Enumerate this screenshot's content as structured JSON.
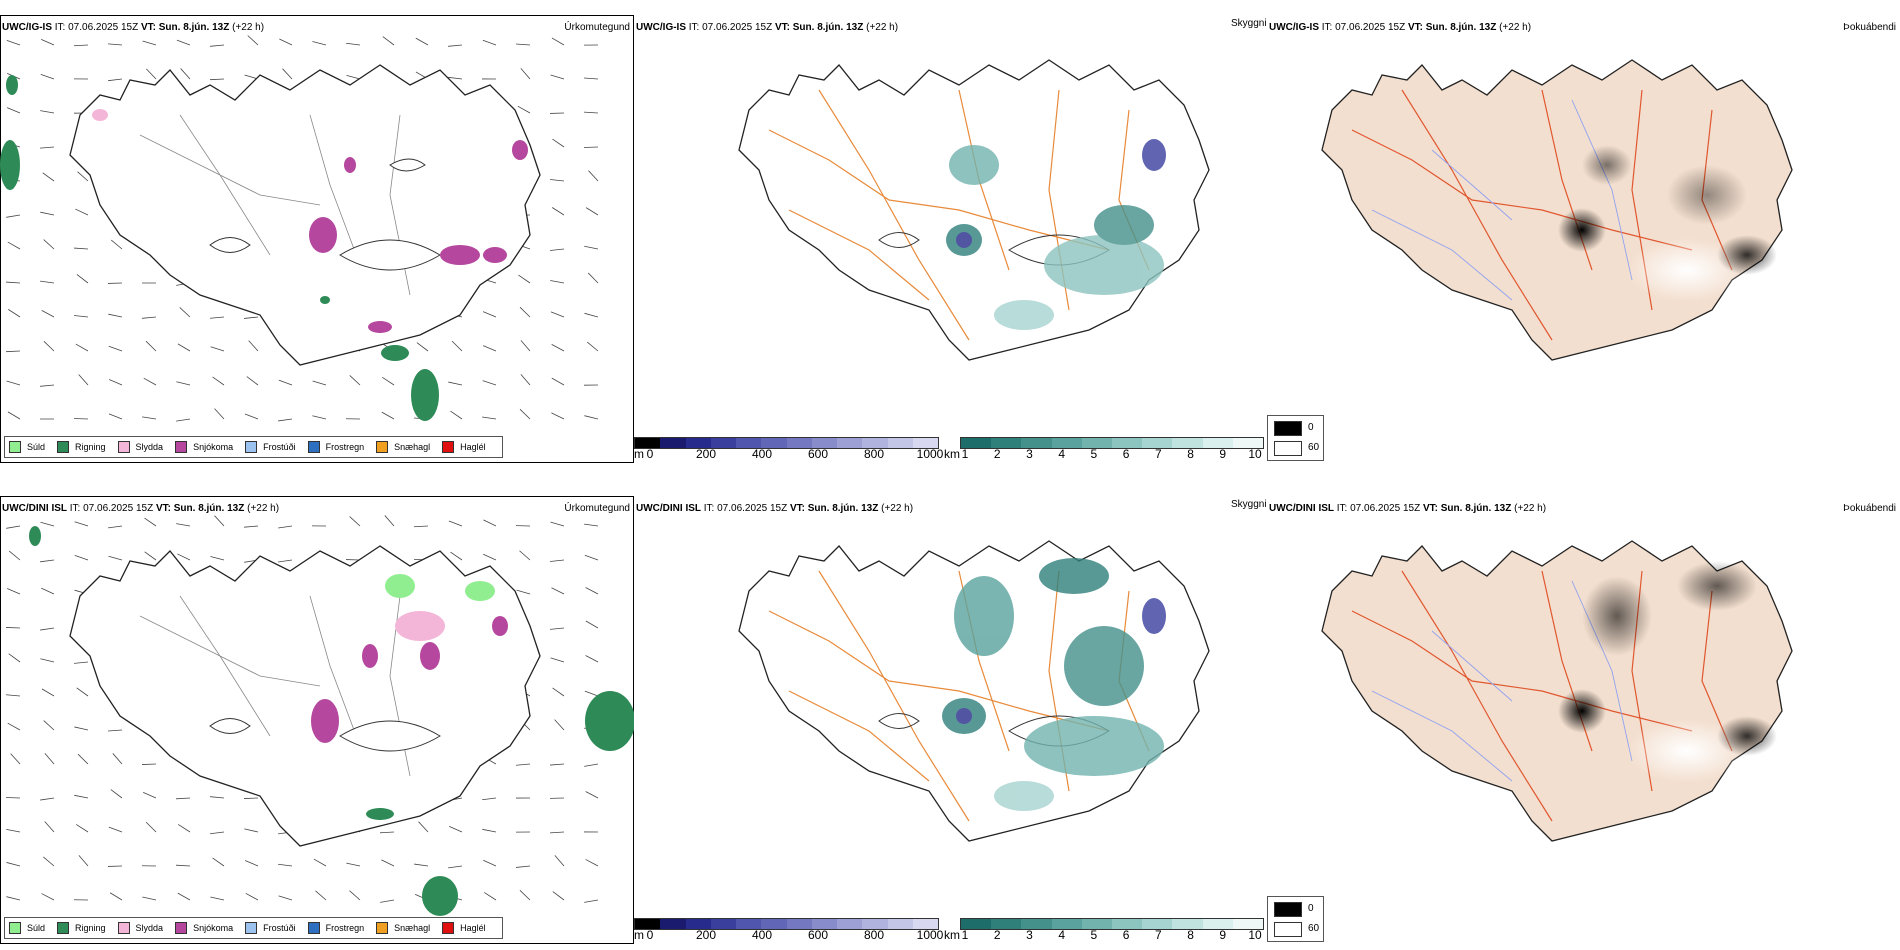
{
  "rows": [
    {
      "model": "UWC/IG-IS",
      "it_label": "IT: 07.06.2025 15Z",
      "vt_label": "VT: Sun. 8.jún. 13Z",
      "lead": "(+22 h)",
      "precip_title": "Úrkomutegund",
      "vis_title": "Skyggni",
      "fog_title": "Þokuábendi"
    },
    {
      "model": "UWC/DINI ISL",
      "it_label": "IT: 07.06.2025 15Z",
      "vt_label": "VT: Sun. 8.jún. 13Z",
      "lead": "(+22 h)",
      "precip_title": "Úrkomutegund",
      "vis_title": "Skyggni",
      "fog_title": "Þokuábendi"
    }
  ],
  "precip_legend": [
    {
      "label": "Súld",
      "color": "#90ee90"
    },
    {
      "label": "Rigning",
      "color": "#2e8b57"
    },
    {
      "label": "Slydda",
      "color": "#f4b6d8"
    },
    {
      "label": "Snjókoma",
      "color": "#b5489e"
    },
    {
      "label": "Frostúði",
      "color": "#9cc3ef"
    },
    {
      "label": "Frostregn",
      "color": "#2f6fc0"
    },
    {
      "label": "Snæhagl",
      "color": "#f0a020"
    },
    {
      "label": "Haglél",
      "color": "#e01010"
    }
  ],
  "ceiling_bar": {
    "unit": "m",
    "ticks": [
      "0",
      "200",
      "400",
      "600",
      "800",
      "1000"
    ],
    "colors": [
      "#000000",
      "#1a1a6e",
      "#262b8c",
      "#3a3f9e",
      "#5055ad",
      "#6166b6",
      "#7378c0",
      "#888cca",
      "#9ca0d4",
      "#b0b3de",
      "#c4c6e8",
      "#d8d9f1"
    ]
  },
  "visibility_bar": {
    "unit": "km",
    "ticks": [
      "1",
      "2",
      "3",
      "4",
      "5",
      "6",
      "7",
      "8",
      "9",
      "10"
    ],
    "colors": [
      "#1d6d6a",
      "#2f7f7b",
      "#44918c",
      "#5aa29d",
      "#72b3ae",
      "#8cc4bf",
      "#a6d4d0",
      "#c0e3e0",
      "#d9f0ee",
      "#eef8f7"
    ]
  },
  "fog_legend": [
    {
      "label": "0",
      "color": "#000000"
    },
    {
      "label": "60",
      "color": "#ffffff"
    }
  ]
}
